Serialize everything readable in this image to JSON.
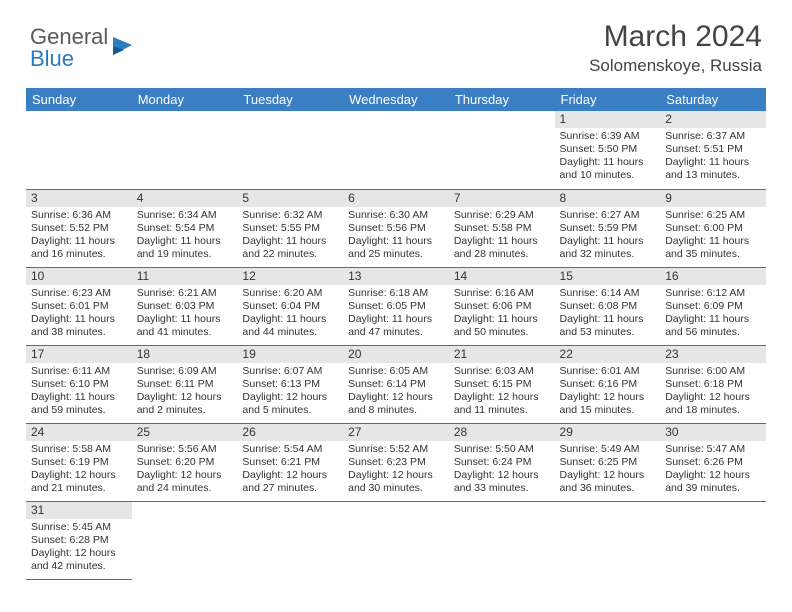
{
  "header": {
    "logo_general": "General",
    "logo_blue": "Blue",
    "month_title": "March 2024",
    "location": "Solomenskoye, Russia"
  },
  "colors": {
    "header_bg": "#3a7fc4",
    "header_text": "#ffffff",
    "daynum_bg": "#e6e6e6",
    "row_border": "#2b7bbf",
    "logo_gray": "#5a5a5a",
    "logo_blue": "#2b7bbf"
  },
  "daynames": [
    "Sunday",
    "Monday",
    "Tuesday",
    "Wednesday",
    "Thursday",
    "Friday",
    "Saturday"
  ],
  "weeks": [
    [
      null,
      null,
      null,
      null,
      null,
      {
        "n": "1",
        "sr": "Sunrise: 6:39 AM",
        "ss": "Sunset: 5:50 PM",
        "d1": "Daylight: 11 hours",
        "d2": "and 10 minutes."
      },
      {
        "n": "2",
        "sr": "Sunrise: 6:37 AM",
        "ss": "Sunset: 5:51 PM",
        "d1": "Daylight: 11 hours",
        "d2": "and 13 minutes."
      }
    ],
    [
      {
        "n": "3",
        "sr": "Sunrise: 6:36 AM",
        "ss": "Sunset: 5:52 PM",
        "d1": "Daylight: 11 hours",
        "d2": "and 16 minutes."
      },
      {
        "n": "4",
        "sr": "Sunrise: 6:34 AM",
        "ss": "Sunset: 5:54 PM",
        "d1": "Daylight: 11 hours",
        "d2": "and 19 minutes."
      },
      {
        "n": "5",
        "sr": "Sunrise: 6:32 AM",
        "ss": "Sunset: 5:55 PM",
        "d1": "Daylight: 11 hours",
        "d2": "and 22 minutes."
      },
      {
        "n": "6",
        "sr": "Sunrise: 6:30 AM",
        "ss": "Sunset: 5:56 PM",
        "d1": "Daylight: 11 hours",
        "d2": "and 25 minutes."
      },
      {
        "n": "7",
        "sr": "Sunrise: 6:29 AM",
        "ss": "Sunset: 5:58 PM",
        "d1": "Daylight: 11 hours",
        "d2": "and 28 minutes."
      },
      {
        "n": "8",
        "sr": "Sunrise: 6:27 AM",
        "ss": "Sunset: 5:59 PM",
        "d1": "Daylight: 11 hours",
        "d2": "and 32 minutes."
      },
      {
        "n": "9",
        "sr": "Sunrise: 6:25 AM",
        "ss": "Sunset: 6:00 PM",
        "d1": "Daylight: 11 hours",
        "d2": "and 35 minutes."
      }
    ],
    [
      {
        "n": "10",
        "sr": "Sunrise: 6:23 AM",
        "ss": "Sunset: 6:01 PM",
        "d1": "Daylight: 11 hours",
        "d2": "and 38 minutes."
      },
      {
        "n": "11",
        "sr": "Sunrise: 6:21 AM",
        "ss": "Sunset: 6:03 PM",
        "d1": "Daylight: 11 hours",
        "d2": "and 41 minutes."
      },
      {
        "n": "12",
        "sr": "Sunrise: 6:20 AM",
        "ss": "Sunset: 6:04 PM",
        "d1": "Daylight: 11 hours",
        "d2": "and 44 minutes."
      },
      {
        "n": "13",
        "sr": "Sunrise: 6:18 AM",
        "ss": "Sunset: 6:05 PM",
        "d1": "Daylight: 11 hours",
        "d2": "and 47 minutes."
      },
      {
        "n": "14",
        "sr": "Sunrise: 6:16 AM",
        "ss": "Sunset: 6:06 PM",
        "d1": "Daylight: 11 hours",
        "d2": "and 50 minutes."
      },
      {
        "n": "15",
        "sr": "Sunrise: 6:14 AM",
        "ss": "Sunset: 6:08 PM",
        "d1": "Daylight: 11 hours",
        "d2": "and 53 minutes."
      },
      {
        "n": "16",
        "sr": "Sunrise: 6:12 AM",
        "ss": "Sunset: 6:09 PM",
        "d1": "Daylight: 11 hours",
        "d2": "and 56 minutes."
      }
    ],
    [
      {
        "n": "17",
        "sr": "Sunrise: 6:11 AM",
        "ss": "Sunset: 6:10 PM",
        "d1": "Daylight: 11 hours",
        "d2": "and 59 minutes."
      },
      {
        "n": "18",
        "sr": "Sunrise: 6:09 AM",
        "ss": "Sunset: 6:11 PM",
        "d1": "Daylight: 12 hours",
        "d2": "and 2 minutes."
      },
      {
        "n": "19",
        "sr": "Sunrise: 6:07 AM",
        "ss": "Sunset: 6:13 PM",
        "d1": "Daylight: 12 hours",
        "d2": "and 5 minutes."
      },
      {
        "n": "20",
        "sr": "Sunrise: 6:05 AM",
        "ss": "Sunset: 6:14 PM",
        "d1": "Daylight: 12 hours",
        "d2": "and 8 minutes."
      },
      {
        "n": "21",
        "sr": "Sunrise: 6:03 AM",
        "ss": "Sunset: 6:15 PM",
        "d1": "Daylight: 12 hours",
        "d2": "and 11 minutes."
      },
      {
        "n": "22",
        "sr": "Sunrise: 6:01 AM",
        "ss": "Sunset: 6:16 PM",
        "d1": "Daylight: 12 hours",
        "d2": "and 15 minutes."
      },
      {
        "n": "23",
        "sr": "Sunrise: 6:00 AM",
        "ss": "Sunset: 6:18 PM",
        "d1": "Daylight: 12 hours",
        "d2": "and 18 minutes."
      }
    ],
    [
      {
        "n": "24",
        "sr": "Sunrise: 5:58 AM",
        "ss": "Sunset: 6:19 PM",
        "d1": "Daylight: 12 hours",
        "d2": "and 21 minutes."
      },
      {
        "n": "25",
        "sr": "Sunrise: 5:56 AM",
        "ss": "Sunset: 6:20 PM",
        "d1": "Daylight: 12 hours",
        "d2": "and 24 minutes."
      },
      {
        "n": "26",
        "sr": "Sunrise: 5:54 AM",
        "ss": "Sunset: 6:21 PM",
        "d1": "Daylight: 12 hours",
        "d2": "and 27 minutes."
      },
      {
        "n": "27",
        "sr": "Sunrise: 5:52 AM",
        "ss": "Sunset: 6:23 PM",
        "d1": "Daylight: 12 hours",
        "d2": "and 30 minutes."
      },
      {
        "n": "28",
        "sr": "Sunrise: 5:50 AM",
        "ss": "Sunset: 6:24 PM",
        "d1": "Daylight: 12 hours",
        "d2": "and 33 minutes."
      },
      {
        "n": "29",
        "sr": "Sunrise: 5:49 AM",
        "ss": "Sunset: 6:25 PM",
        "d1": "Daylight: 12 hours",
        "d2": "and 36 minutes."
      },
      {
        "n": "30",
        "sr": "Sunrise: 5:47 AM",
        "ss": "Sunset: 6:26 PM",
        "d1": "Daylight: 12 hours",
        "d2": "and 39 minutes."
      }
    ],
    [
      {
        "n": "31",
        "sr": "Sunrise: 5:45 AM",
        "ss": "Sunset: 6:28 PM",
        "d1": "Daylight: 12 hours",
        "d2": "and 42 minutes."
      },
      null,
      null,
      null,
      null,
      null,
      null
    ]
  ]
}
